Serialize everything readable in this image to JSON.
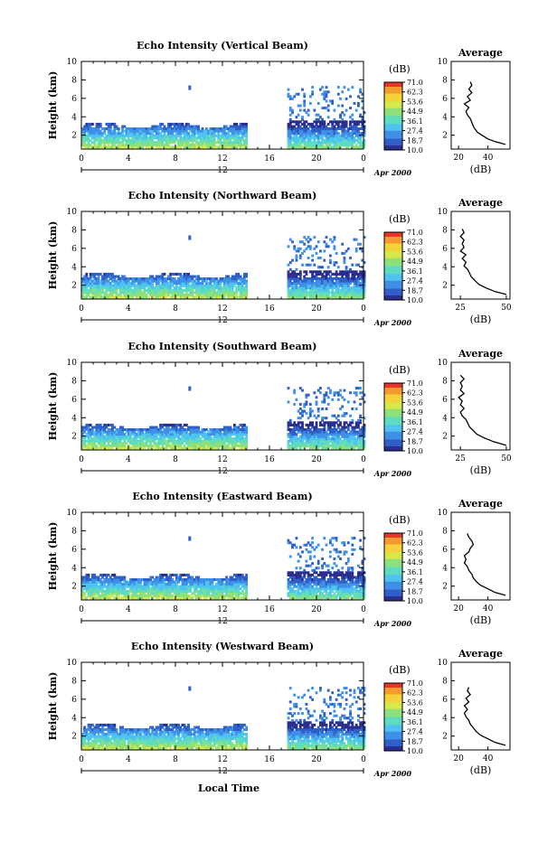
{
  "figure": {
    "date_label": "Apr 2000",
    "x_axis_label": "Local Time",
    "marker_label": "12"
  },
  "colors": {
    "colormap": [
      "#2b2e8c",
      "#2f5fc7",
      "#3f8fe6",
      "#4fc3f0",
      "#5fdcc0",
      "#8ee07a",
      "#d6e84a",
      "#f6d23a",
      "#f59a2e",
      "#e8352a"
    ],
    "profile_line": "#000000"
  },
  "chart_data": [
    {
      "type": "heatmap",
      "title": "Echo Intensity (Vertical Beam)",
      "ylabel": "Height (km)",
      "xlim": [
        0,
        24
      ],
      "ylim": [
        0.5,
        10
      ],
      "x_ticks": [
        "0",
        "4",
        "8",
        "12",
        "16",
        "20",
        "0"
      ],
      "y_ticks": [
        "2",
        "4",
        "6",
        "8",
        "10"
      ],
      "colorbar": {
        "unit": "(dB)",
        "labels": [
          "71.0",
          "62.3",
          "53.6",
          "44.9",
          "36.1",
          "27.4",
          "18.7",
          "10.0"
        ]
      },
      "profile": {
        "title": "Average",
        "xlabel": "(dB)",
        "x_ticks": [
          "20",
          "40"
        ],
        "xlim": [
          15,
          55
        ],
        "ylim": [
          0.5,
          10
        ],
        "points": [
          [
            52,
            1.0
          ],
          [
            45,
            1.3
          ],
          [
            40,
            1.6
          ],
          [
            36,
            2.0
          ],
          [
            33,
            2.3
          ],
          [
            31,
            2.7
          ],
          [
            30,
            3.0
          ],
          [
            29,
            3.4
          ],
          [
            28,
            3.8
          ],
          [
            26,
            4.2
          ],
          [
            25,
            4.6
          ],
          [
            27,
            5.0
          ],
          [
            24,
            5.4
          ],
          [
            28,
            5.8
          ],
          [
            26,
            6.2
          ],
          [
            29,
            6.6
          ],
          [
            27,
            7.0
          ],
          [
            29,
            7.4
          ],
          [
            28,
            7.8
          ]
        ]
      }
    },
    {
      "type": "heatmap",
      "title": "Echo Intensity (Northward Beam)",
      "ylabel": "Height (km)",
      "xlim": [
        0,
        24
      ],
      "ylim": [
        0.5,
        10
      ],
      "x_ticks": [
        "0",
        "4",
        "8",
        "12",
        "16",
        "20",
        "0"
      ],
      "y_ticks": [
        "2",
        "4",
        "6",
        "8",
        "10"
      ],
      "colorbar": {
        "unit": "(dB)",
        "labels": [
          "71.0",
          "62.3",
          "53.6",
          "44.9",
          "36.1",
          "27.4",
          "18.7",
          "10.0"
        ]
      },
      "profile": {
        "title": "Average",
        "xlabel": "(dB)",
        "x_ticks": [
          "25",
          "50"
        ],
        "xlim": [
          20,
          52
        ],
        "ylim": [
          0.5,
          10
        ],
        "points": [
          [
            50,
            1.0
          ],
          [
            44,
            1.3
          ],
          [
            39,
            1.7
          ],
          [
            35,
            2.1
          ],
          [
            33,
            2.5
          ],
          [
            31,
            2.9
          ],
          [
            30,
            3.3
          ],
          [
            29,
            3.7
          ],
          [
            27,
            4.1
          ],
          [
            28,
            4.5
          ],
          [
            26,
            4.9
          ],
          [
            28,
            5.3
          ],
          [
            25,
            5.7
          ],
          [
            27,
            6.1
          ],
          [
            26,
            6.5
          ],
          [
            27,
            6.9
          ],
          [
            25,
            7.3
          ],
          [
            27,
            7.7
          ],
          [
            26,
            8.1
          ]
        ]
      }
    },
    {
      "type": "heatmap",
      "title": "Echo Intensity (Southward Beam)",
      "ylabel": "Height (km)",
      "xlim": [
        0,
        24
      ],
      "ylim": [
        0.5,
        10
      ],
      "x_ticks": [
        "0",
        "4",
        "8",
        "12",
        "16",
        "20",
        "0"
      ],
      "y_ticks": [
        "2",
        "4",
        "6",
        "8",
        "10"
      ],
      "colorbar": {
        "unit": "(dB)",
        "labels": [
          "71.0",
          "62.3",
          "53.6",
          "44.9",
          "36.1",
          "27.4",
          "18.7",
          "10.0"
        ]
      },
      "profile": {
        "title": "Average",
        "xlabel": "(dB)",
        "x_ticks": [
          "25",
          "50"
        ],
        "xlim": [
          20,
          52
        ],
        "ylim": [
          0.5,
          10
        ],
        "points": [
          [
            50,
            1.0
          ],
          [
            43,
            1.4
          ],
          [
            38,
            1.8
          ],
          [
            34,
            2.2
          ],
          [
            32,
            2.6
          ],
          [
            30,
            3.0
          ],
          [
            29,
            3.4
          ],
          [
            28,
            3.8
          ],
          [
            26,
            4.2
          ],
          [
            25,
            4.6
          ],
          [
            27,
            5.0
          ],
          [
            25,
            5.4
          ],
          [
            26,
            5.8
          ],
          [
            24,
            6.2
          ],
          [
            27,
            6.6
          ],
          [
            25,
            7.0
          ],
          [
            26,
            7.4
          ],
          [
            25,
            7.8
          ],
          [
            27,
            8.2
          ],
          [
            25,
            8.6
          ]
        ]
      }
    },
    {
      "type": "heatmap",
      "title": "Echo Intensity (Eastward Beam)",
      "ylabel": "Height (km)",
      "xlim": [
        0,
        24
      ],
      "ylim": [
        0.5,
        10
      ],
      "x_ticks": [
        "0",
        "4",
        "8",
        "12",
        "16",
        "20",
        "0"
      ],
      "y_ticks": [
        "2",
        "4",
        "6",
        "8",
        "10"
      ],
      "colorbar": {
        "unit": "(dB)",
        "labels": [
          "71.0",
          "62.3",
          "53.6",
          "44.9",
          "36.1",
          "27.4",
          "18.7",
          "10.0"
        ]
      },
      "profile": {
        "title": "Average",
        "xlabel": "(dB)",
        "x_ticks": [
          "20",
          "40"
        ],
        "xlim": [
          15,
          55
        ],
        "ylim": [
          0.5,
          10
        ],
        "points": [
          [
            52,
            1.0
          ],
          [
            45,
            1.3
          ],
          [
            40,
            1.7
          ],
          [
            35,
            2.1
          ],
          [
            32,
            2.5
          ],
          [
            30,
            2.9
          ],
          [
            29,
            3.3
          ],
          [
            27,
            3.7
          ],
          [
            26,
            4.1
          ],
          [
            24,
            4.5
          ],
          [
            25,
            4.9
          ],
          [
            24,
            5.3
          ],
          [
            27,
            5.7
          ],
          [
            28,
            6.1
          ],
          [
            30,
            6.5
          ],
          [
            29,
            6.9
          ],
          [
            27,
            7.3
          ],
          [
            26,
            7.7
          ]
        ]
      }
    },
    {
      "type": "heatmap",
      "title": "Echo Intensity (Westward Beam)",
      "ylabel": "Height (km)",
      "xlim": [
        0,
        24
      ],
      "ylim": [
        0.5,
        10
      ],
      "x_ticks": [
        "0",
        "4",
        "8",
        "12",
        "16",
        "20",
        "0"
      ],
      "y_ticks": [
        "2",
        "4",
        "6",
        "8",
        "10"
      ],
      "colorbar": {
        "unit": "(dB)",
        "labels": [
          "71.0",
          "62.3",
          "53.6",
          "44.9",
          "36.1",
          "27.4",
          "18.7",
          "10.0"
        ]
      },
      "profile": {
        "title": "Average",
        "xlabel": "(dB)",
        "x_ticks": [
          "20",
          "40"
        ],
        "xlim": [
          15,
          55
        ],
        "ylim": [
          0.5,
          10
        ],
        "points": [
          [
            52,
            1.0
          ],
          [
            45,
            1.3
          ],
          [
            40,
            1.7
          ],
          [
            35,
            2.1
          ],
          [
            32,
            2.5
          ],
          [
            30,
            2.9
          ],
          [
            28,
            3.3
          ],
          [
            27,
            3.7
          ],
          [
            25,
            4.1
          ],
          [
            24,
            4.5
          ],
          [
            26,
            4.9
          ],
          [
            24,
            5.3
          ],
          [
            27,
            5.7
          ],
          [
            25,
            6.1
          ],
          [
            28,
            6.5
          ],
          [
            26,
            6.9
          ],
          [
            27,
            7.3
          ]
        ]
      }
    }
  ]
}
